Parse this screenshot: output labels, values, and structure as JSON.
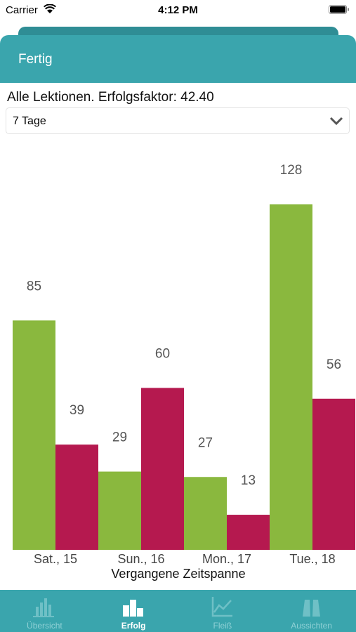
{
  "status_bar": {
    "carrier": "Carrier",
    "time": "4:12 PM"
  },
  "header": {
    "title": "Fertig"
  },
  "summary": "Alle Lektionen. Erfolgsfaktor: 42.40",
  "dropdown": {
    "selected": "7 Tage"
  },
  "tabs": [
    "Übersicht",
    "Erfolg",
    "Fleiß",
    "Aussichten"
  ],
  "chart_data": {
    "type": "bar",
    "xlabel": "Vergangene Zeitspanne",
    "categories": [
      "Sat., 15",
      "Sun., 16",
      "Mon., 17",
      "Tue., 18"
    ],
    "series": [
      {
        "color": "#8ab83e",
        "values": [
          85,
          29,
          27,
          128
        ]
      },
      {
        "color": "#b5194f",
        "values": [
          39,
          60,
          13,
          56
        ]
      }
    ],
    "ylim": [
      0,
      153
    ]
  }
}
